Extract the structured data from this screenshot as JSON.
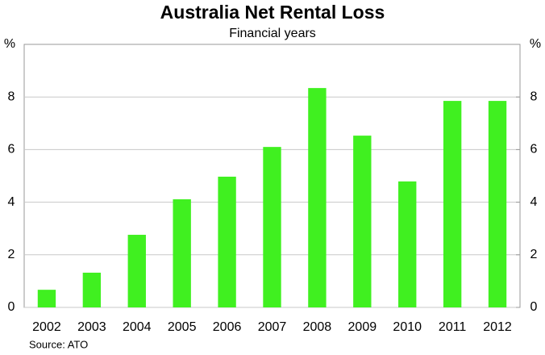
{
  "chart_data": {
    "type": "bar",
    "title": "Australia Net Rental Loss",
    "subtitle": "Financial years",
    "y_label": "%",
    "y2_label": "%",
    "source": "Source: ATO",
    "categories": [
      "2002",
      "2003",
      "2004",
      "2005",
      "2006",
      "2007",
      "2008",
      "2009",
      "2010",
      "2011",
      "2012"
    ],
    "values": [
      0.67,
      1.32,
      2.76,
      4.11,
      4.97,
      6.1,
      8.34,
      6.53,
      4.79,
      7.85,
      7.85
    ],
    "color": "#40f020",
    "ylim": [
      0,
      10
    ],
    "yticks": [
      0,
      2,
      4,
      6,
      8
    ],
    "y2lim": [
      0,
      10
    ],
    "y2ticks": [
      0,
      2,
      4,
      6,
      8
    ],
    "grid": true
  }
}
